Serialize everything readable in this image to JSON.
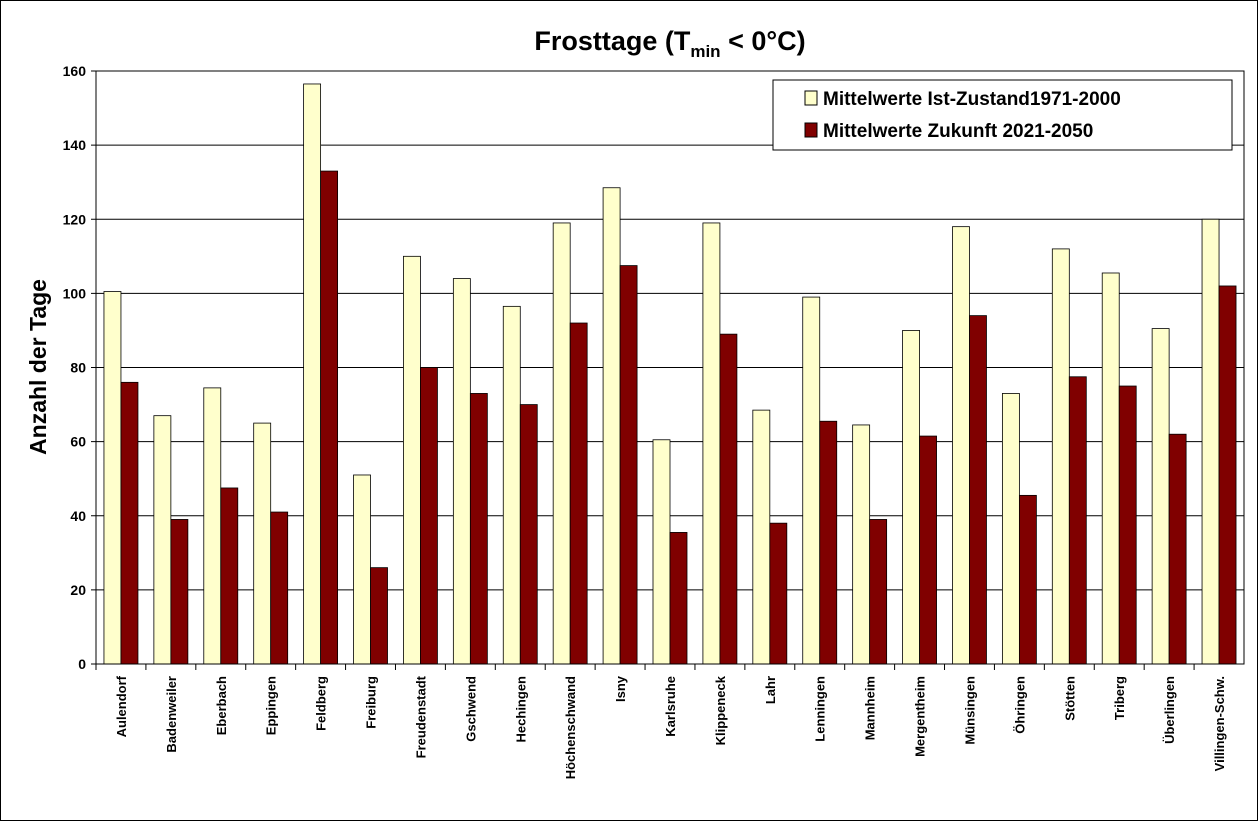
{
  "chart_data": {
    "type": "bar",
    "title": [
      "Frosttage (T",
      "min",
      " < 0°C)"
    ],
    "y_label": "Anzahl der Tage",
    "categories": [
      "Aulendorf",
      "Badenweiler",
      "Eberbach",
      "Eppingen",
      "Feldberg",
      "Freiburg",
      "Freudenstadt",
      "Gschwend",
      "Hechingen",
      "Höchenschwand",
      "Isny",
      "Karlsruhe",
      "Klippeneck",
      "Lahr",
      "Lenningen",
      "Mannheim",
      "Mergentheim",
      "Münsingen",
      "Öhringen",
      "Stötten",
      "Triberg",
      "Überlingen",
      "Villingen-Schw."
    ],
    "series": [
      {
        "name": "Mittelwerte Ist-Zustand1971-2000",
        "color": "#ffffcc",
        "values": [
          100.5,
          67,
          74.5,
          65,
          156.5,
          51,
          110,
          104,
          96.5,
          119,
          128.5,
          60.5,
          119,
          68.5,
          99,
          64.5,
          90,
          118,
          73,
          112,
          105.5,
          90.5,
          120
        ]
      },
      {
        "name": "Mittelwerte Zukunft 2021-2050",
        "color": "#800000",
        "values": [
          76,
          39,
          47.5,
          41,
          133,
          26,
          80,
          73,
          70,
          92,
          107.5,
          35.5,
          89,
          38,
          65.5,
          39,
          61.5,
          94,
          45.5,
          77.5,
          75,
          62,
          102
        ]
      }
    ],
    "ylim": [
      0,
      160
    ],
    "yticks": [
      0,
      20,
      40,
      60,
      80,
      100,
      120,
      140,
      160
    ],
    "grid": true,
    "legend": "upper right"
  }
}
